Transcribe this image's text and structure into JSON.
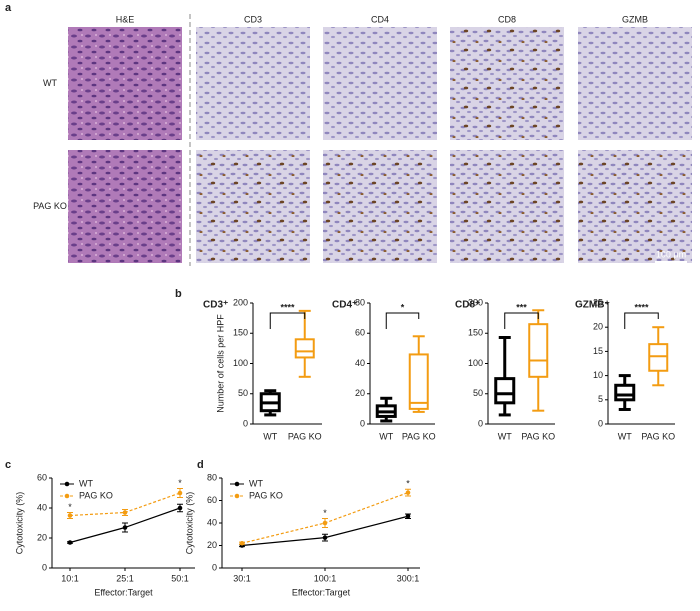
{
  "panel_labels": [
    "a",
    "b",
    "c",
    "d"
  ],
  "images": {
    "columns": [
      "H&E",
      "CD3",
      "CD4",
      "CD8",
      "GZMB"
    ],
    "rows": [
      "WT",
      "PAG KO"
    ],
    "scale_bar": "100 μm"
  },
  "chart_data": [
    {
      "type": "box",
      "title": "CD3⁺",
      "ylabel": "Number of cells per HPF",
      "categories": [
        "WT",
        "PAG KO"
      ],
      "ylim": [
        0,
        200
      ],
      "yticks": [
        0,
        50,
        100,
        150,
        200
      ],
      "annotation": "****",
      "boxes": [
        {
          "min": 15,
          "q1": 22,
          "median": 35,
          "q3": 50,
          "max": 55,
          "color": "#000000"
        },
        {
          "min": 78,
          "q1": 110,
          "median": 120,
          "q3": 140,
          "max": 187,
          "color": "#f39c12"
        }
      ]
    },
    {
      "type": "box",
      "title": "CD4⁺",
      "categories": [
        "WT",
        "PAG KO"
      ],
      "ylim": [
        0,
        80
      ],
      "yticks": [
        0,
        20,
        40,
        60,
        80
      ],
      "annotation": "*",
      "boxes": [
        {
          "min": 2,
          "q1": 5,
          "median": 8,
          "q3": 12,
          "max": 17,
          "color": "#000000"
        },
        {
          "min": 8,
          "q1": 10,
          "median": 14,
          "q3": 46,
          "max": 58,
          "color": "#f39c12"
        }
      ]
    },
    {
      "type": "box",
      "title": "CD8⁺",
      "categories": [
        "WT",
        "PAG KO"
      ],
      "ylim": [
        0,
        200
      ],
      "yticks": [
        0,
        50,
        100,
        150,
        200
      ],
      "annotation": "***",
      "boxes": [
        {
          "min": 15,
          "q1": 35,
          "median": 50,
          "q3": 75,
          "max": 143,
          "color": "#000000"
        },
        {
          "min": 22,
          "q1": 78,
          "median": 105,
          "q3": 165,
          "max": 188,
          "color": "#f39c12"
        }
      ]
    },
    {
      "type": "box",
      "title": "GZMB⁺",
      "categories": [
        "WT",
        "PAG KO"
      ],
      "ylim": [
        0,
        25
      ],
      "yticks": [
        0,
        5,
        10,
        15,
        20,
        25
      ],
      "annotation": "****",
      "boxes": [
        {
          "min": 3,
          "q1": 5,
          "median": 6,
          "q3": 8,
          "max": 10,
          "color": "#000000"
        },
        {
          "min": 8,
          "q1": 11,
          "median": 14,
          "q3": 16.5,
          "max": 20,
          "color": "#f39c12"
        }
      ]
    },
    {
      "type": "line",
      "xlabel": "Effector:Target",
      "ylabel": "Cytotoxicity (%)",
      "categories": [
        "10:1",
        "25:1",
        "50:1"
      ],
      "ylim": [
        0,
        60
      ],
      "yticks": [
        0,
        20,
        40,
        60
      ],
      "legend": "upper-left",
      "significance": [
        "*",
        null,
        "*"
      ],
      "series": [
        {
          "name": "WT",
          "color": "#000000",
          "dash": false,
          "values": [
            17,
            27,
            40
          ],
          "errors": [
            0.5,
            3,
            2.5
          ]
        },
        {
          "name": "PAG KO",
          "color": "#f39c12",
          "dash": true,
          "values": [
            35,
            37,
            50
          ],
          "errors": [
            2,
            2,
            3
          ]
        }
      ]
    },
    {
      "type": "line",
      "xlabel": "Effector:Target",
      "ylabel": "Cytotoxicity (%)",
      "categories": [
        "30:1",
        "100:1",
        "300:1"
      ],
      "ylim": [
        0,
        80
      ],
      "yticks": [
        0,
        20,
        40,
        60,
        80
      ],
      "legend": "upper-left",
      "significance": [
        null,
        "*",
        "*"
      ],
      "series": [
        {
          "name": "WT",
          "color": "#000000",
          "dash": false,
          "values": [
            20,
            27,
            46
          ],
          "errors": [
            1,
            3,
            2
          ]
        },
        {
          "name": "PAG KO",
          "color": "#f39c12",
          "dash": true,
          "values": [
            22,
            40,
            67
          ],
          "errors": [
            1,
            4,
            3
          ]
        }
      ]
    }
  ]
}
